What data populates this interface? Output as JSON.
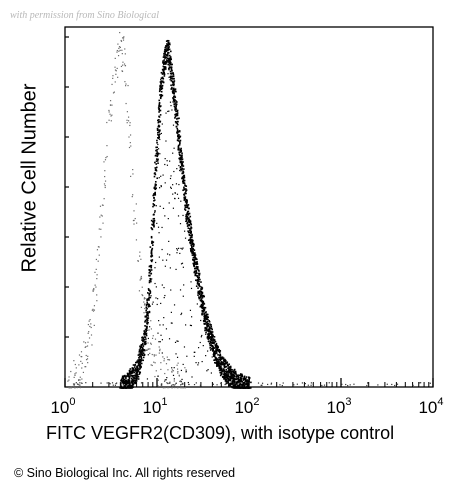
{
  "watermark": "with permission from Sino Biological",
  "copyright": "© Sino Biological Inc. All rights reserved",
  "chart_data": {
    "type": "histogram",
    "xlabel": "FITC VEGFR2(CD309), with isotype control",
    "ylabel": "Relative Cell Number",
    "x_scale": "log",
    "xlim": [
      1,
      10000
    ],
    "x_ticks": [
      {
        "base": "10",
        "exp": "0"
      },
      {
        "base": "10",
        "exp": "1"
      },
      {
        "base": "10",
        "exp": "2"
      },
      {
        "base": "10",
        "exp": "3"
      },
      {
        "base": "10",
        "exp": "4"
      }
    ],
    "ylim": [
      0,
      1.0
    ],
    "series": [
      {
        "role": "isotype control",
        "color": "#6a6a6a",
        "style": "sparse dotted",
        "points": [
          [
            1.05,
            0.0
          ],
          [
            1.4,
            0.03
          ],
          [
            1.7,
            0.1
          ],
          [
            1.9,
            0.18
          ],
          [
            2.1,
            0.28
          ],
          [
            2.3,
            0.4
          ],
          [
            2.5,
            0.5
          ],
          [
            2.7,
            0.62
          ],
          [
            2.9,
            0.75
          ],
          [
            3.1,
            0.82
          ],
          [
            3.3,
            0.88
          ],
          [
            3.5,
            0.92
          ],
          [
            3.8,
            0.95
          ],
          [
            4.0,
            0.98
          ],
          [
            4.3,
            0.96
          ],
          [
            4.6,
            0.88
          ],
          [
            5.0,
            0.72
          ],
          [
            5.5,
            0.55
          ],
          [
            6.0,
            0.42
          ],
          [
            6.6,
            0.3
          ],
          [
            7.3,
            0.22
          ],
          [
            8.0,
            0.15
          ],
          [
            9.0,
            0.1
          ],
          [
            10.5,
            0.06
          ],
          [
            12.5,
            0.03
          ],
          [
            15.0,
            0.02
          ],
          [
            20.0,
            0.0
          ]
        ]
      },
      {
        "role": "VEGFR2 stained",
        "color": "#000000",
        "style": "dense",
        "points": [
          [
            4.0,
            0.0
          ],
          [
            5.0,
            0.02
          ],
          [
            6.0,
            0.05
          ],
          [
            7.0,
            0.12
          ],
          [
            8.0,
            0.25
          ],
          [
            9.0,
            0.5
          ],
          [
            10.0,
            0.72
          ],
          [
            11.0,
            0.88
          ],
          [
            12.0,
            0.95
          ],
          [
            13.0,
            0.98
          ],
          [
            14.0,
            0.92
          ],
          [
            15.5,
            0.82
          ],
          [
            17.0,
            0.72
          ],
          [
            19.0,
            0.6
          ],
          [
            21.0,
            0.5
          ],
          [
            24.0,
            0.4
          ],
          [
            28.0,
            0.3
          ],
          [
            33.0,
            0.2
          ],
          [
            40.0,
            0.12
          ],
          [
            50.0,
            0.06
          ],
          [
            65.0,
            0.025
          ],
          [
            80.0,
            0.01
          ],
          [
            100.0,
            0.0
          ]
        ]
      }
    ]
  }
}
